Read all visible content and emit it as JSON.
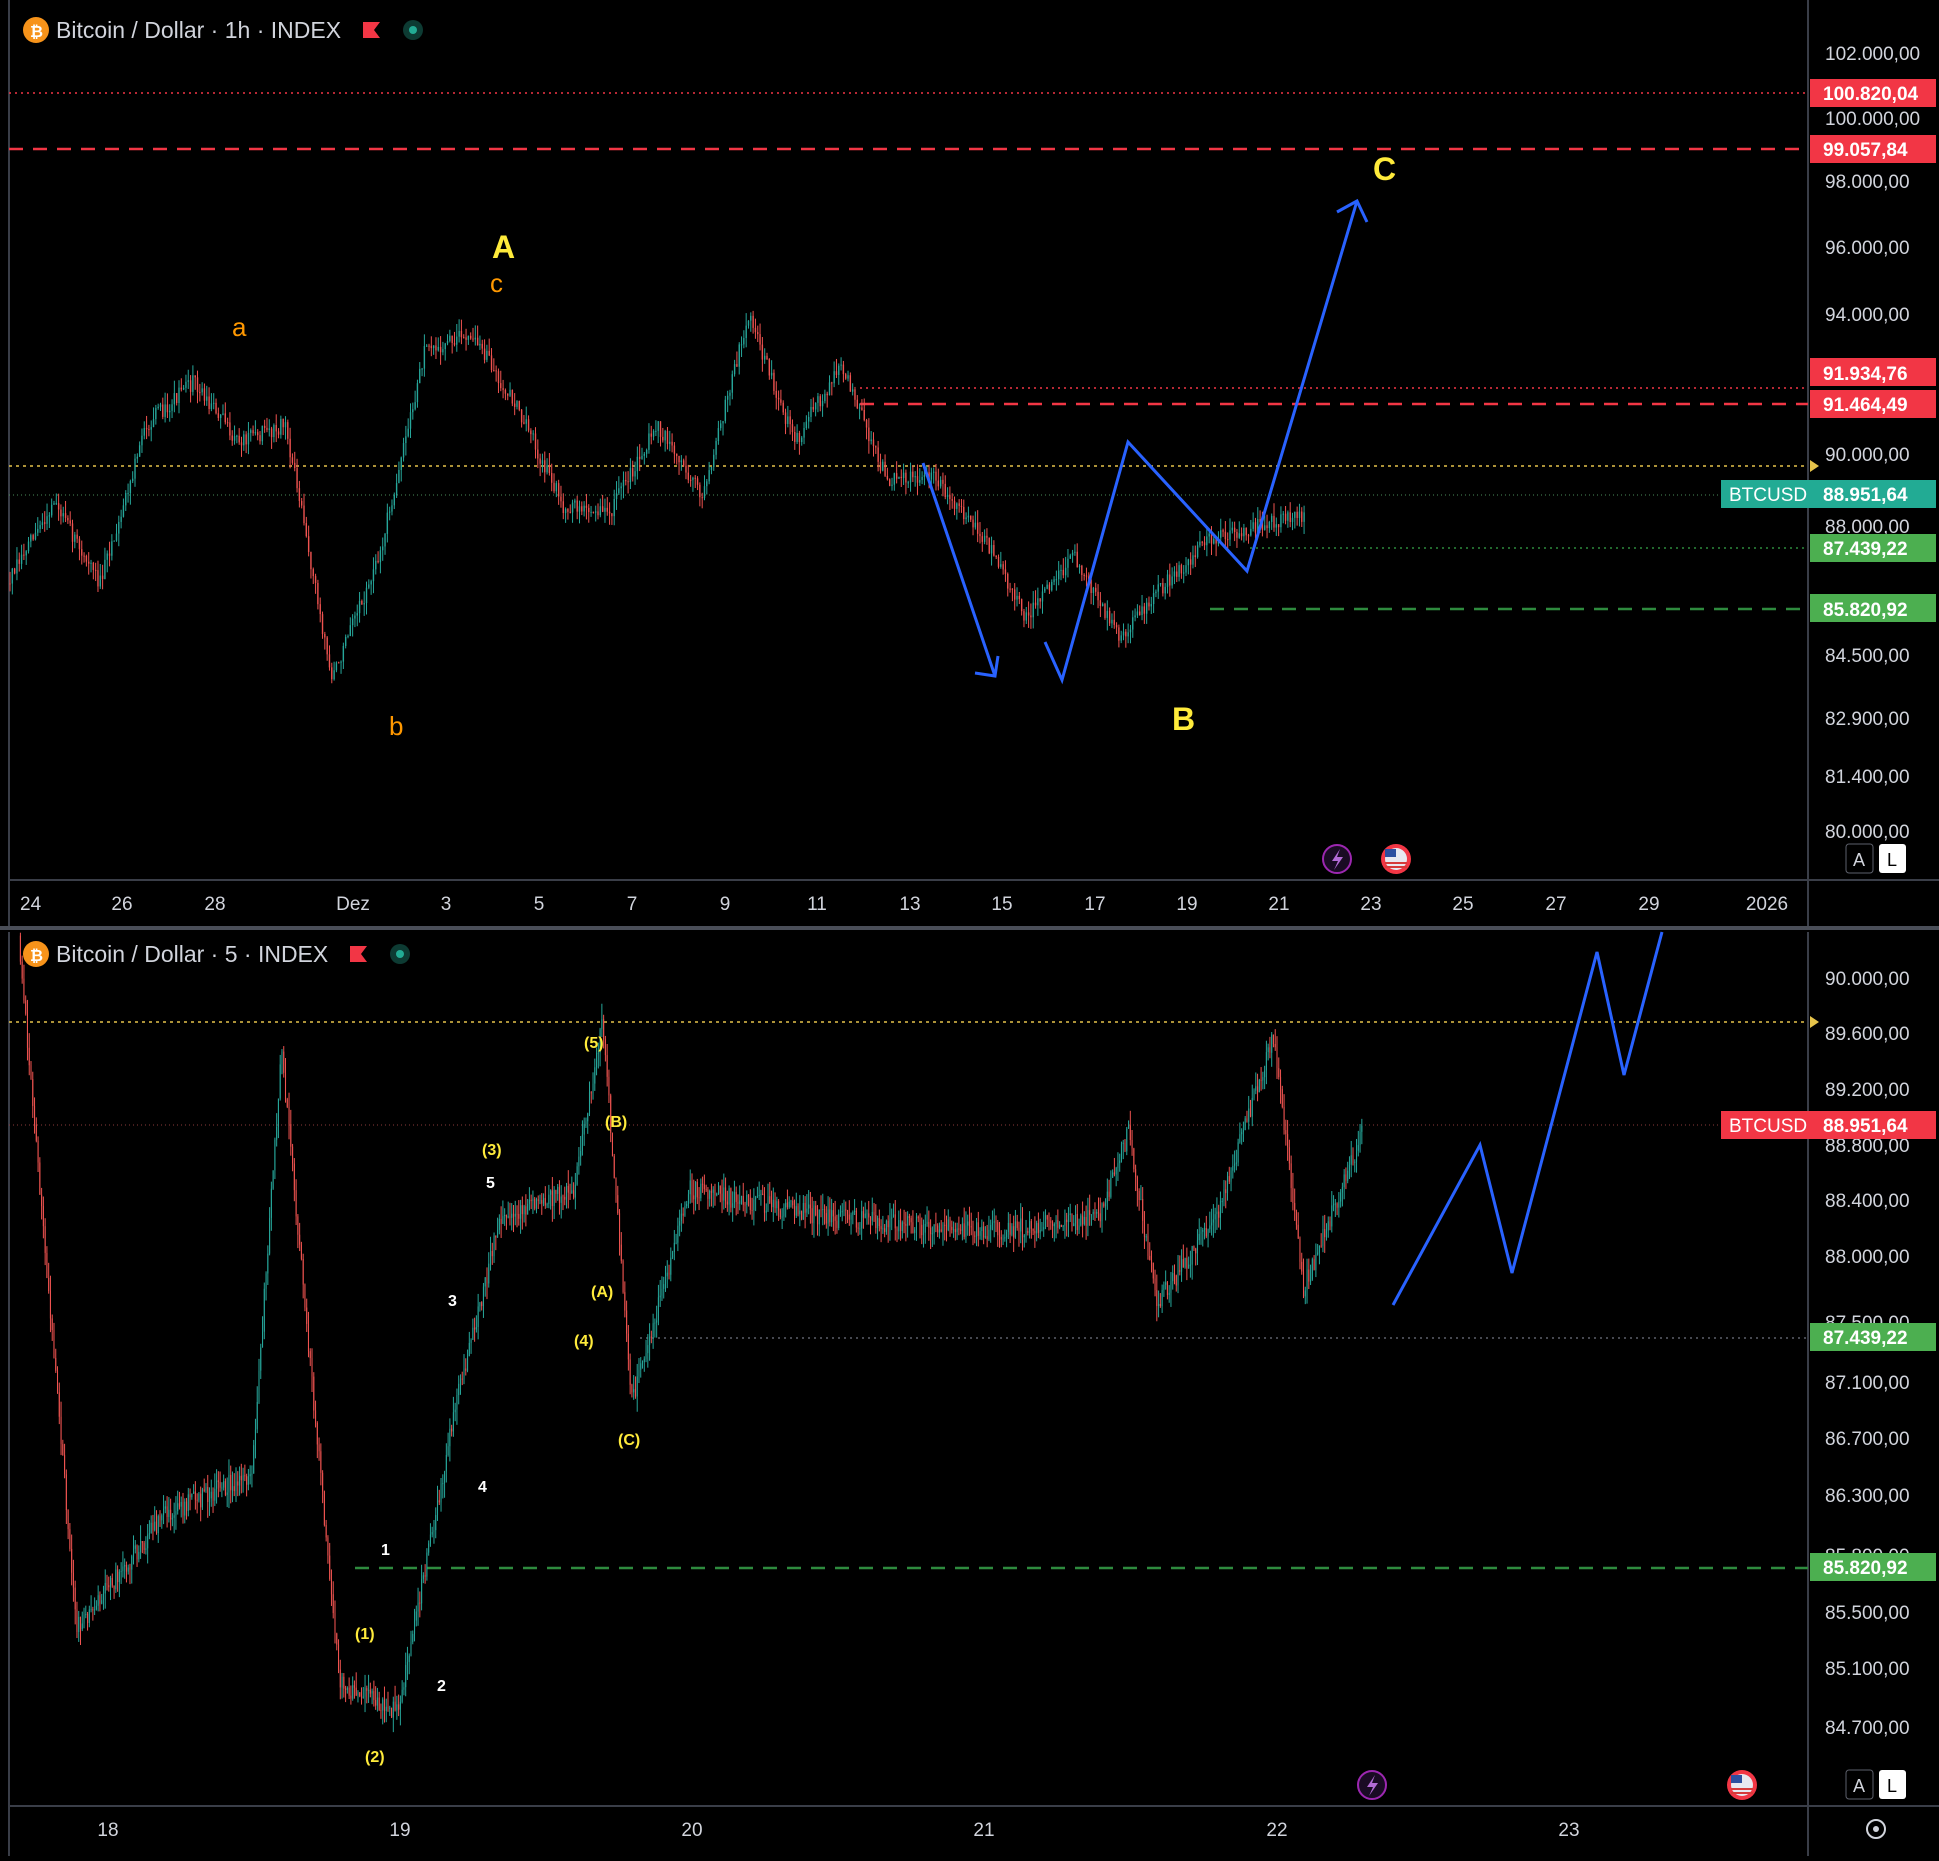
{
  "colors": {
    "up": "#26a69a",
    "down": "#ef5350",
    "red_level": "#f23645",
    "green_level": "#2e8b3e",
    "yellow_level": "#e6c34a",
    "wave_blue": "#2962ff",
    "teal_tag": "#22ab94",
    "red_tag": "#f23645",
    "green_tag": "#4caf50",
    "orange_label": "#ff9800",
    "yellow_label": "#ffeb3b",
    "white_label": "#ffffff"
  },
  "icons": [
    "bitcoin-icon",
    "flag-icon",
    "market-status-icon",
    "lightning-icon",
    "us-flag-icon",
    "settings-icon"
  ],
  "top": {
    "title": "Bitcoin / Dollar · 1h · INDEX",
    "price_labels": [
      "102.000,00",
      "100.000,00",
      "98.000,00",
      "96.000,00",
      "94.000,00",
      "90.000,00",
      "88.000,00",
      "84.500,00",
      "82.900,00",
      "81.400,00",
      "80.000,00"
    ],
    "time_labels": [
      "24",
      "26",
      "28",
      "Dez",
      "3",
      "5",
      "7",
      "9",
      "11",
      "13",
      "15",
      "17",
      "19",
      "21",
      "23",
      "25",
      "27",
      "29",
      "2026"
    ],
    "symbol_tag": "BTCUSD",
    "tags": {
      "t1": "100.820,04",
      "t2": "99.057,84",
      "t3": "91.934,76",
      "t4": "91.464,49",
      "last": "88.951,64",
      "t5": "87.439,22",
      "t6": "85.820,92"
    },
    "waves": {
      "A": "A",
      "B": "B",
      "C": "C",
      "a": "a",
      "b": "b",
      "c": "c"
    },
    "buttons": {
      "auto": "A",
      "log": "L"
    }
  },
  "bottom": {
    "title": "Bitcoin / Dollar · 5 · INDEX",
    "price_labels": [
      "90.000,00",
      "89.600,00",
      "89.200,00",
      "88.800,00",
      "88.400,00",
      "88.000,00",
      "87.500,00",
      "87.100,00",
      "86.700,00",
      "86.300,00",
      "85.800,00",
      "85.500,00",
      "85.100,00",
      "84.700,00"
    ],
    "time_labels": [
      "18",
      "19",
      "20",
      "21",
      "22",
      "23"
    ],
    "symbol_tag": "BTCUSD",
    "tags": {
      "last": "88.951,64",
      "t5": "87.439,22",
      "t6": "85.820,92"
    },
    "waves": {
      "w1": "1",
      "w2": "2",
      "w3": "3",
      "w4": "4",
      "w5": "5",
      "p1": "(1)",
      "p2": "(2)",
      "p3": "(3)",
      "p4": "(4)",
      "p5": "(5)",
      "pA": "(A)",
      "pB": "(B)",
      "pC": "(C)"
    },
    "buttons": {
      "auto": "A",
      "log": "L"
    }
  },
  "chart_data": [
    {
      "type": "candlestick",
      "title": "Bitcoin / Dollar · 1h · INDEX",
      "x_range": [
        "24",
        "2026"
      ],
      "ylim": [
        80000,
        102000
      ],
      "last_price": 88951.64,
      "levels": [
        {
          "value": 100820.04,
          "style": "red dotted"
        },
        {
          "value": 99057.84,
          "style": "red dashed"
        },
        {
          "value": 91934.76,
          "style": "red dotted"
        },
        {
          "value": 91464.49,
          "style": "red dashed"
        },
        {
          "value": 87439.22,
          "style": "green dotted"
        },
        {
          "value": 85820.92,
          "style": "green dashed"
        }
      ],
      "approx_path": [
        [
          "24",
          87000
        ],
        [
          "25",
          89300
        ],
        [
          "26",
          87000
        ],
        [
          "27",
          91500
        ],
        [
          "28",
          92700
        ],
        [
          "29",
          91000
        ],
        [
          "30",
          91500
        ],
        [
          "1",
          84300
        ],
        [
          "2",
          87600
        ],
        [
          "3",
          93500
        ],
        [
          "4",
          94100
        ],
        [
          "5",
          92000
        ],
        [
          "6",
          89200
        ],
        [
          "7",
          89000
        ],
        [
          "8",
          91500
        ],
        [
          "9",
          89500
        ],
        [
          "10",
          94600
        ],
        [
          "11",
          91000
        ],
        [
          "12",
          93200
        ],
        [
          "13",
          89900
        ],
        [
          "14",
          90000
        ],
        [
          "15",
          88500
        ],
        [
          "16",
          86000
        ],
        [
          "17",
          87800
        ],
        [
          "18",
          85500
        ],
        [
          "19",
          87000
        ],
        [
          "20",
          88300
        ],
        [
          "21",
          88600
        ],
        [
          "22",
          88951.64
        ]
      ],
      "annotations": [
        "a",
        "b",
        "c",
        "A",
        "B",
        "C"
      ]
    },
    {
      "type": "candlestick",
      "title": "Bitcoin / Dollar · 5 · INDEX",
      "x_range": [
        "18",
        "23"
      ],
      "ylim": [
        84500,
        90300
      ],
      "last_price": 88951.64,
      "levels": [
        {
          "value": 89650,
          "style": "yellow dotted"
        },
        {
          "value": 87439.22,
          "style": "dotted"
        },
        {
          "value": 85820.92,
          "style": "green dashed"
        }
      ],
      "approx_path": [
        [
          "17.7",
          90300
        ],
        [
          "17.9",
          85400
        ],
        [
          "18.2",
          86200
        ],
        [
          "18.5",
          86500
        ],
        [
          "18.6",
          89500
        ],
        [
          "18.8",
          85000
        ],
        [
          "19.0",
          84800
        ],
        [
          "19.2",
          87000
        ],
        [
          "19.35",
          88300
        ],
        [
          "19.6",
          88500
        ],
        [
          "19.7",
          89700
        ],
        [
          "19.8",
          87000
        ],
        [
          "20.0",
          88500
        ],
        [
          "20.5",
          88300
        ],
        [
          "21.0",
          88200
        ],
        [
          "21.4",
          88300
        ],
        [
          "21.5",
          88900
        ],
        [
          "21.6",
          87700
        ],
        [
          "21.8",
          88300
        ],
        [
          "22.0",
          89600
        ],
        [
          "22.1",
          87800
        ],
        [
          "22.3",
          88900
        ]
      ],
      "annotations": [
        "1",
        "2",
        "3",
        "4",
        "5",
        "(1)",
        "(2)",
        "(3)",
        "(4)",
        "(5)",
        "(A)",
        "(B)",
        "(C)"
      ]
    }
  ]
}
